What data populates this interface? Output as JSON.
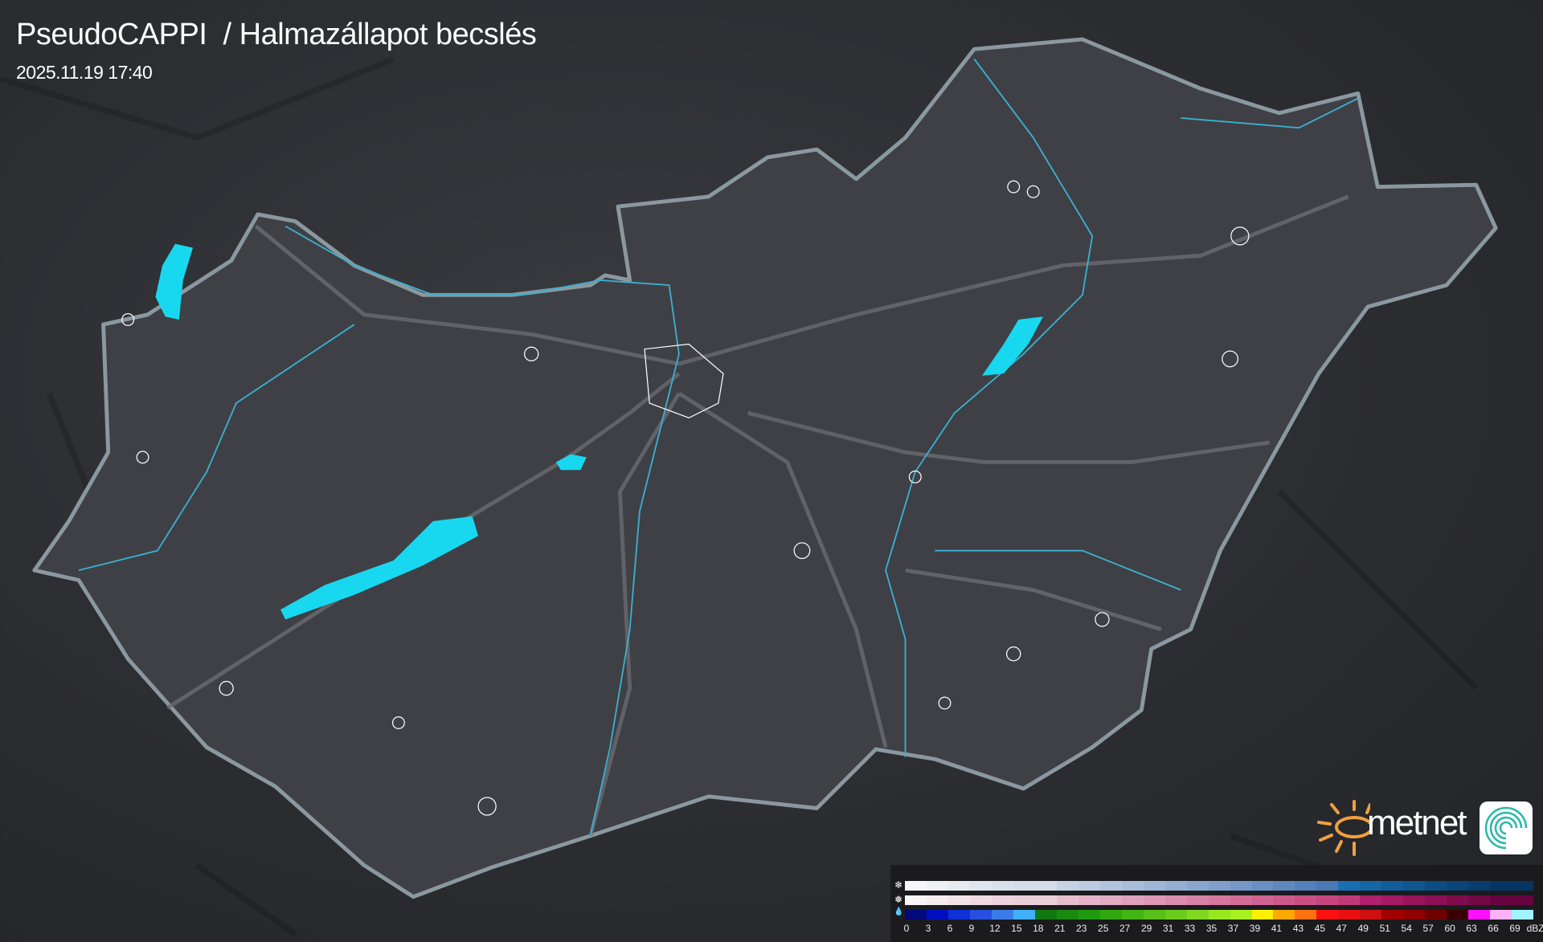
{
  "header": {
    "title": "PseudoCAPPI  / Halmazállapot becslés",
    "timestamp": "2025.11.19 17:40"
  },
  "map": {
    "country_fill": "#3f4045",
    "border_color": "#8a98a0",
    "river_color": "#3ab0d0",
    "precip_color": "#18d8f0",
    "settlement_outline": "#ffffff"
  },
  "logo": {
    "brand": "metnet",
    "sun_color": "#f0a040"
  },
  "legend": {
    "rows": [
      {
        "icon": "snowflake-icon",
        "symbol": "❄",
        "colors": [
          "#f6f6f8",
          "#eef0f4",
          "#e6eaf1",
          "#dfe5ef",
          "#d8e0ec",
          "#d3dde9",
          "#d3dde9",
          "#c4d2e4",
          "#bccbe0",
          "#b3c4dc",
          "#a9bdd9",
          "#9fb6d6",
          "#95afd3",
          "#8aa7cf",
          "#809fcb",
          "#7498c7",
          "#6a90c2",
          "#5f88be",
          "#5580ba",
          "#4b79b6",
          "#1870b0",
          "#1466a4",
          "#115d99",
          "#0f558e",
          "#0c4c83",
          "#0a4478",
          "#083d6e",
          "#063564"
        ]
      },
      {
        "icon": "sleet-icon",
        "symbol": "❅",
        "colors": [
          "#f6f4f5",
          "#f4ecef",
          "#f1e3e8",
          "#efdbe2",
          "#ecd2dc",
          "#ead0d9",
          "#ead0d9",
          "#e6bfcf",
          "#e4b5c8",
          "#e2abc2",
          "#e0a1bb",
          "#dd97b4",
          "#da8cad",
          "#d882a6",
          "#d5779f",
          "#d26d98",
          "#cf6392",
          "#cc598b",
          "#c94f85",
          "#c6457e",
          "#c13a78",
          "#b0206c",
          "#a41a64",
          "#98155c",
          "#8c1055",
          "#800c4d",
          "#740846",
          "#68043f"
        ]
      },
      {
        "icon": "raindrop-icon",
        "symbol": "💧",
        "colors": [
          "#000a7a",
          "#0010c0",
          "#1030d8",
          "#2850e0",
          "#3c7ce8",
          "#40b0f8",
          "#107810",
          "#188a10",
          "#209a10",
          "#30a810",
          "#44b414",
          "#58c018",
          "#6ccc1c",
          "#80d820",
          "#98e820",
          "#a8f020",
          "#fff000",
          "#ffa800",
          "#ff7010",
          "#ff1010",
          "#e81010",
          "#d01010",
          "#a00000",
          "#900000",
          "#700000",
          "#380000",
          "#ff10ff",
          "#ffb0f8",
          "#a0f4ff"
        ]
      }
    ],
    "labels": [
      "0",
      "3",
      "6",
      "9",
      "12",
      "15",
      "18",
      "21",
      "23",
      "25",
      "27",
      "29",
      "31",
      "33",
      "35",
      "37",
      "39",
      "41",
      "43",
      "45",
      "47",
      "49",
      "51",
      "54",
      "57",
      "60",
      "63",
      "66",
      "69"
    ],
    "unit": "dBZ"
  }
}
